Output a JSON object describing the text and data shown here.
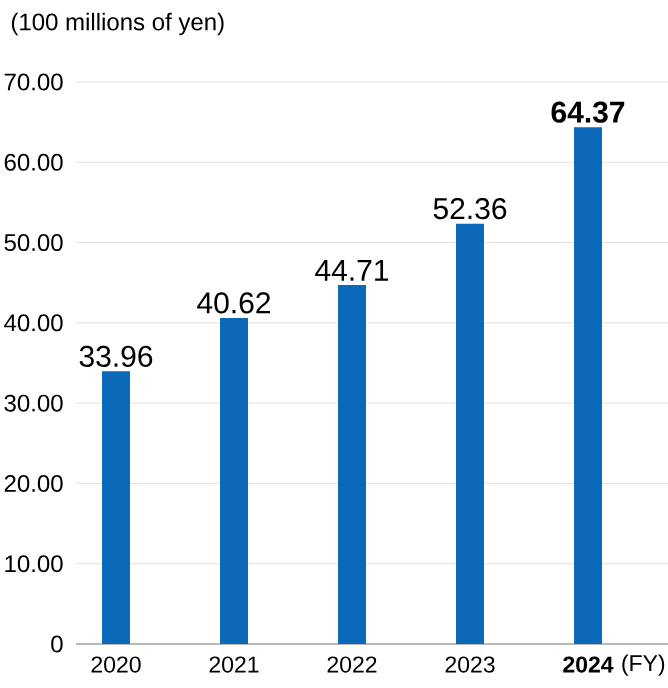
{
  "chart_data": {
    "type": "bar",
    "ylabel": "(100 millions of yen)",
    "xlabel": "(FY)",
    "categories": [
      "2020",
      "2021",
      "2022",
      "2023",
      "**2024**"
    ],
    "values": [
      33.96,
      40.62,
      44.71,
      52.36,
      64.37
    ],
    "value_labels": [
      "33.96",
      "40.62",
      "44.71",
      "52.36",
      "**64.37**"
    ],
    "color": "#0c68b8",
    "ylim": [
      0,
      70
    ],
    "yticks": [
      0,
      {
        "value": 10,
        "label": "10.00"
      },
      {
        "value": 20,
        "label": "20.00"
      },
      {
        "value": 30,
        "label": "30.00"
      },
      {
        "value": 40,
        "label": "40.00"
      },
      {
        "value": 50,
        "label": "50.00"
      },
      {
        "value": 60,
        "label": "60.00"
      },
      {
        "value": 70,
        "label": "70.00"
      }
    ],
    "grid": "y"
  }
}
